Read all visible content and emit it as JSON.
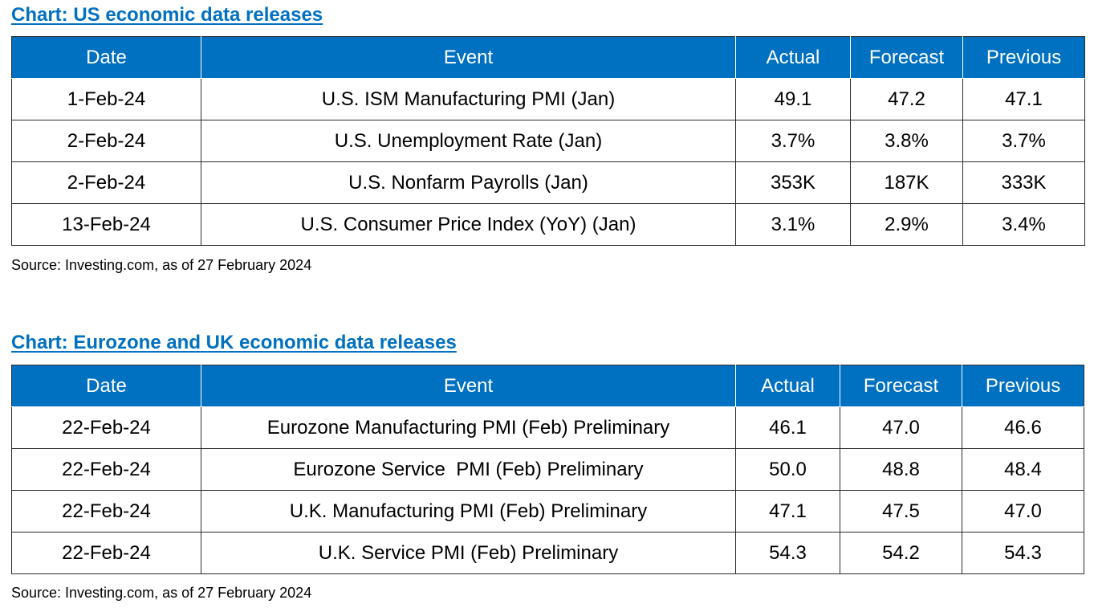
{
  "columns": [
    "Date",
    "Event",
    "Actual",
    "Forecast",
    "Previous"
  ],
  "us_chart": {
    "title": "Chart: US economic data releases",
    "rows": [
      [
        "1-Feb-24",
        "U.S. ISM Manufacturing PMI (Jan)",
        "49.1",
        "47.2",
        "47.1"
      ],
      [
        "2-Feb-24",
        "U.S. Unemployment Rate (Jan)",
        "3.7%",
        "3.8%",
        "3.7%"
      ],
      [
        "2-Feb-24",
        "U.S. Nonfarm Payrolls (Jan)",
        "353K",
        "187K",
        "333K"
      ],
      [
        "13-Feb-24",
        "U.S. Consumer Price Index (YoY) (Jan)",
        "3.1%",
        "2.9%",
        "3.4%"
      ]
    ],
    "source": "Source: Investing.com, as of 27 February 2024"
  },
  "eu_chart": {
    "title": "Chart: Eurozone and UK economic data releases",
    "rows": [
      [
        "22-Feb-24",
        "Eurozone Manufacturing PMI (Feb) Preliminary",
        "46.1",
        "47.0",
        "46.6"
      ],
      [
        "22-Feb-24",
        "Eurozone Service  PMI (Feb) Preliminary",
        "50.0",
        "48.8",
        "48.4"
      ],
      [
        "22-Feb-24",
        "U.K. Manufacturing PMI (Feb) Preliminary",
        "47.1",
        "47.5",
        "47.0"
      ],
      [
        "22-Feb-24",
        "U.K. Service PMI (Feb) Preliminary",
        "54.3",
        "54.2",
        "54.3"
      ]
    ],
    "source": "Source: Investing.com, as of 27 February 2024"
  },
  "colors": {
    "header_bg": "#0070c0",
    "title_text": "#0070c0",
    "header_text": "#ffffff"
  }
}
